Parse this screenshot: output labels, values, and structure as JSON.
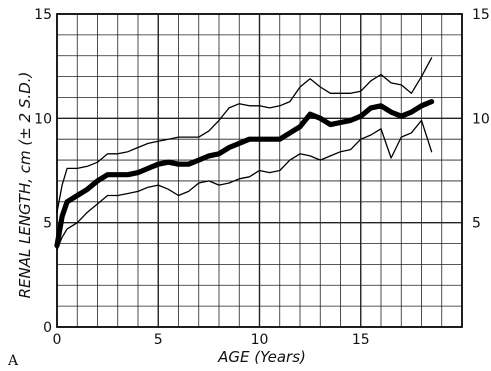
{
  "chart_data": {
    "type": "line",
    "panel_label": "A",
    "xlabel": "AGE (Years)",
    "ylabel": "RENAL LENGTH, cm (± 2 S.D.)",
    "xlim": [
      0,
      20
    ],
    "ylim": [
      0,
      15
    ],
    "x_ticks": [
      0,
      5,
      10,
      15
    ],
    "y_ticks_left": [
      0,
      5,
      10,
      15
    ],
    "y_ticks_right": [
      5,
      10,
      15
    ],
    "grid": true,
    "x_grid_step": 1,
    "y_grid_step": 1,
    "x": [
      0,
      0.25,
      0.5,
      1,
      1.5,
      2,
      2.5,
      3,
      3.5,
      4,
      4.5,
      5,
      5.5,
      6,
      6.5,
      7,
      7.5,
      8,
      8.5,
      9,
      9.5,
      10,
      10.5,
      11,
      11.5,
      12,
      12.5,
      13,
      13.5,
      14,
      14.5,
      15,
      15.5,
      16,
      16.5,
      17,
      17.5,
      18,
      18.5
    ],
    "series": [
      {
        "role": "mean",
        "values": [
          3.9,
          5.3,
          6.0,
          6.3,
          6.6,
          7.0,
          7.3,
          7.3,
          7.3,
          7.4,
          7.6,
          7.8,
          7.9,
          7.8,
          7.8,
          8.0,
          8.2,
          8.3,
          8.6,
          8.8,
          9.0,
          9.0,
          9.0,
          9.0,
          9.3,
          9.6,
          10.2,
          10.0,
          9.7,
          9.8,
          9.9,
          10.1,
          10.5,
          10.6,
          10.3,
          10.1,
          10.3,
          10.6,
          10.8
        ]
      },
      {
        "role": "upper (+2 S.D.)",
        "values": [
          5.5,
          6.8,
          7.6,
          7.6,
          7.7,
          7.9,
          8.3,
          8.3,
          8.4,
          8.6,
          8.8,
          8.9,
          9.0,
          9.1,
          9.1,
          9.1,
          9.4,
          9.9,
          10.5,
          10.7,
          10.6,
          10.6,
          10.5,
          10.6,
          10.8,
          11.5,
          11.9,
          11.5,
          11.2,
          11.2,
          11.2,
          11.3,
          11.8,
          12.1,
          11.7,
          11.6,
          11.2,
          12.0,
          12.9
        ]
      },
      {
        "role": "lower (−2 S.D.)",
        "values": [
          3.7,
          4.3,
          4.7,
          5.0,
          5.5,
          5.9,
          6.3,
          6.3,
          6.4,
          6.5,
          6.7,
          6.8,
          6.6,
          6.3,
          6.5,
          6.9,
          7.0,
          6.8,
          6.9,
          7.1,
          7.2,
          7.5,
          7.4,
          7.5,
          8.0,
          8.3,
          8.2,
          8.0,
          8.2,
          8.4,
          8.5,
          9.0,
          9.2,
          9.5,
          8.1,
          9.1,
          9.3,
          9.9,
          8.4
        ]
      }
    ]
  }
}
